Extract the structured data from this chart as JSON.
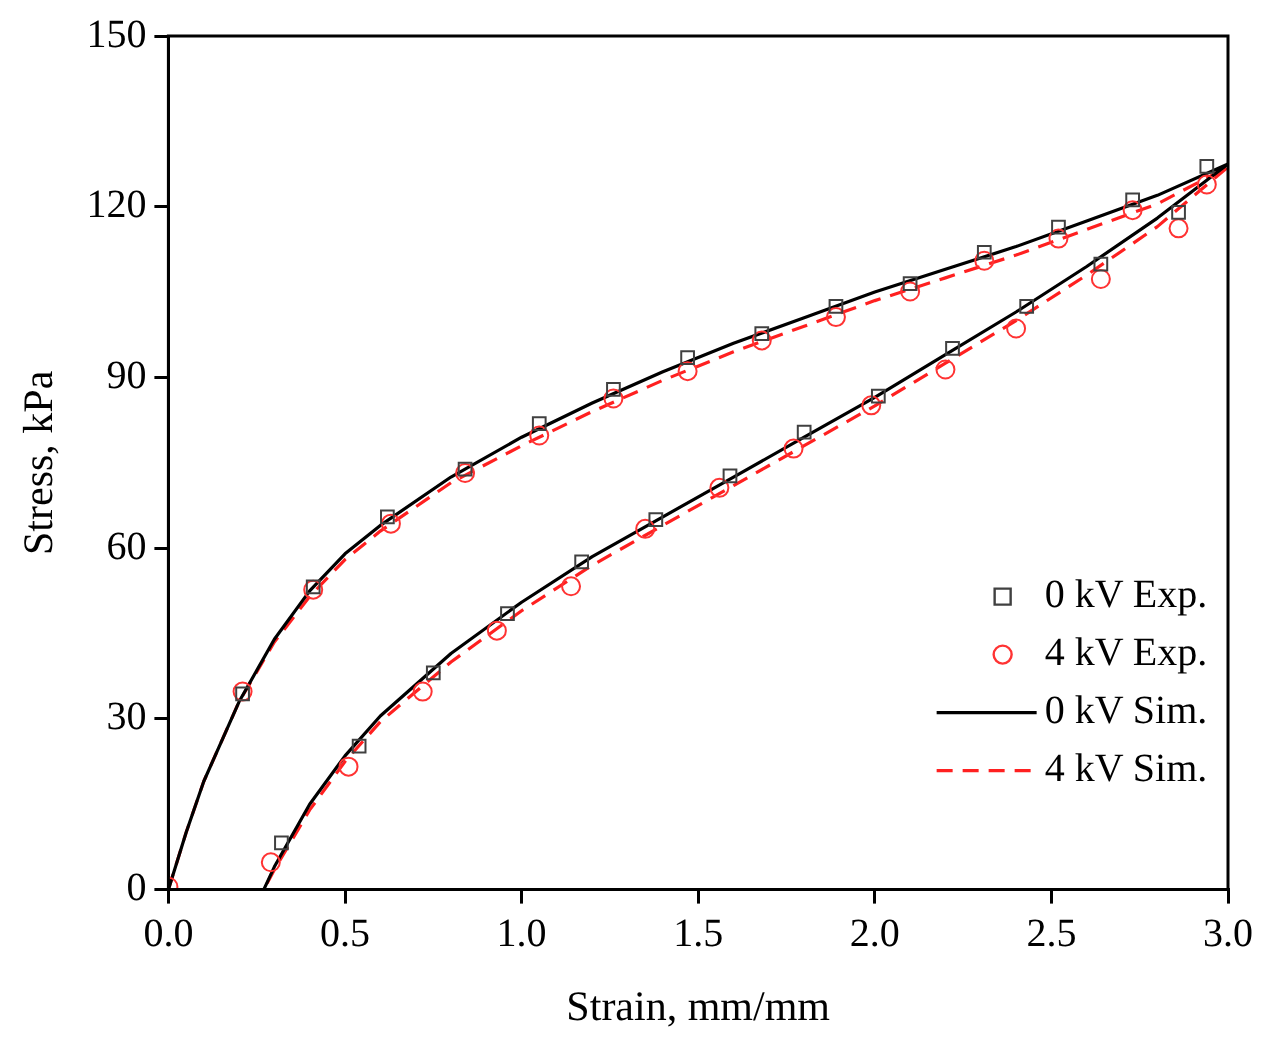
{
  "chart_data": {
    "type": "scatter",
    "xlabel": "Strain, mm/mm",
    "ylabel": "Stress, kPa",
    "xlim": [
      0,
      3
    ],
    "xticks": [
      {
        "value": 0,
        "label": "0.0"
      },
      0.5,
      {
        "value": 1,
        "label": "1.0"
      },
      1.5,
      {
        "value": 2,
        "label": "2.0"
      },
      2.5,
      {
        "value": 3,
        "label": "3.0"
      }
    ],
    "ylim": [
      0,
      150
    ],
    "yticks": [
      0,
      30,
      60,
      90,
      120,
      150
    ],
    "grid": false,
    "legend": "bottom right",
    "series": [
      {
        "name": "0 kV Exp.",
        "type": "scatter",
        "marker": "square",
        "color": "#404040",
        "x": [
          0.21,
          0.41,
          0.62,
          0.84,
          1.05,
          1.26,
          1.47,
          1.68,
          1.89,
          2.1,
          2.31,
          2.52,
          2.73,
          2.94,
          2.86,
          2.64,
          2.43,
          2.22,
          2.01,
          1.8,
          1.59,
          1.38,
          1.17,
          0.96,
          0.75,
          0.54,
          0.32
        ],
        "values": [
          34.4,
          53.2,
          65.5,
          73.9,
          81.9,
          87.9,
          93.5,
          97.7,
          102.5,
          106.5,
          112,
          116.4,
          121.2,
          127.1,
          119,
          109.9,
          102.5,
          95.1,
          86.7,
          80.4,
          72.7,
          65,
          57.6,
          48.5,
          38.1,
          25.2,
          8.2
        ]
      },
      {
        "name": "4 kV Exp.",
        "type": "scatter",
        "marker": "circle",
        "color": "#ff3333",
        "x": [
          0,
          0.21,
          0.41,
          0.63,
          0.84,
          1.05,
          1.26,
          1.47,
          1.68,
          1.89,
          2.1,
          2.31,
          2.52,
          2.73,
          2.94,
          2.86,
          2.64,
          2.4,
          2.2,
          1.99,
          1.77,
          1.56,
          1.35,
          1.14,
          0.93,
          0.72,
          0.51,
          0.29
        ],
        "values": [
          0.5,
          34.8,
          52.7,
          64.3,
          73.2,
          79.8,
          86.3,
          91.1,
          96.5,
          100.6,
          105.1,
          110.5,
          114.4,
          119.4,
          123.9,
          116.2,
          107.3,
          98.6,
          91.4,
          85.1,
          77.5,
          70.6,
          63.4,
          53.3,
          45.5,
          34.8,
          21.6,
          4.8
        ]
      },
      {
        "name": "0 kV Sim.",
        "type": "line",
        "marker": "none",
        "line_style": "solid",
        "color": "#000000",
        "x": [
          0,
          0.05,
          0.1,
          0.2,
          0.3,
          0.4,
          0.5,
          0.6,
          0.8,
          1,
          1.2,
          1.4,
          1.6,
          1.8,
          2,
          2.2,
          2.4,
          2.6,
          2.8,
          3,
          2.8,
          2.6,
          2.4,
          2.2,
          2,
          1.8,
          1.6,
          1.4,
          1.2,
          1,
          0.8,
          0.6,
          0.5,
          0.4,
          0.3,
          0.27
        ],
        "values": [
          0,
          10,
          19,
          33,
          44,
          52.5,
          59,
          64,
          72.5,
          79.5,
          85.5,
          91,
          96,
          100.5,
          105,
          109,
          113,
          117.5,
          122,
          127.5,
          118,
          109.5,
          101.5,
          94,
          86.5,
          79.5,
          72.5,
          65.5,
          58.5,
          50.5,
          41.5,
          30.5,
          23.5,
          15,
          4,
          0
        ]
      },
      {
        "name": "4 kV Sim.",
        "type": "line",
        "marker": "none",
        "line_style": "dashed",
        "color": "#ff2020",
        "x": [
          0,
          0.05,
          0.1,
          0.2,
          0.3,
          0.4,
          0.5,
          0.6,
          0.8,
          1,
          1.2,
          1.4,
          1.6,
          1.8,
          2,
          2.2,
          2.4,
          2.6,
          2.8,
          3,
          2.8,
          2.6,
          2.4,
          2.2,
          2,
          1.8,
          1.6,
          1.4,
          1.2,
          1,
          0.8,
          0.6,
          0.5,
          0.4,
          0.3,
          0.27
        ],
        "values": [
          0,
          10,
          19,
          33,
          43.5,
          51.5,
          58,
          63,
          71.5,
          78,
          84,
          89.5,
          94.5,
          99,
          103.5,
          107.5,
          111.5,
          116,
          120.5,
          127,
          116.5,
          108,
          100,
          92.5,
          85,
          78,
          71,
          64,
          57,
          49,
          40,
          29.5,
          22.5,
          14,
          3.5,
          0
        ]
      }
    ]
  }
}
